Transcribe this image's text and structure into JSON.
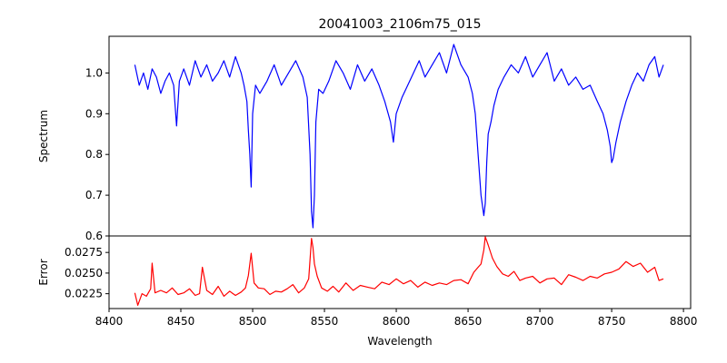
{
  "chart_data": [
    {
      "type": "line",
      "title": "20041003_2106m75_015",
      "xlabel": "",
      "ylabel": "Spectrum",
      "xlim": [
        8400,
        8805
      ],
      "ylim": [
        0.6,
        1.09
      ],
      "grid": false,
      "y_ticks": [
        0.6,
        0.7,
        0.8,
        0.9,
        1.0
      ],
      "y_tick_labels": [
        "0.6",
        "0.7",
        "0.8",
        "0.9",
        "1.0"
      ],
      "series": [
        {
          "color": "#0000ff",
          "x": [
            8418,
            8421,
            8424,
            8427,
            8430,
            8433,
            8436,
            8439,
            8442,
            8445,
            8447,
            8449,
            8452,
            8456,
            8460,
            8464,
            8468,
            8472,
            8476,
            8480,
            8484,
            8488,
            8492,
            8494,
            8496,
            8497,
            8498,
            8499,
            8500,
            8502,
            8505,
            8510,
            8515,
            8520,
            8525,
            8530,
            8535,
            8538,
            8540,
            8541,
            8542,
            8543,
            8544,
            8546,
            8549,
            8553,
            8558,
            8563,
            8568,
            8573,
            8578,
            8583,
            8588,
            8592,
            8596,
            8598,
            8600,
            8604,
            8608,
            8612,
            8616,
            8620,
            8625,
            8630,
            8635,
            8640,
            8645,
            8650,
            8653,
            8655,
            8657,
            8659,
            8661,
            8662,
            8663,
            8664,
            8666,
            8668,
            8671,
            8675,
            8680,
            8685,
            8690,
            8695,
            8700,
            8705,
            8710,
            8715,
            8720,
            8725,
            8730,
            8735,
            8740,
            8744,
            8747,
            8749,
            8750,
            8751,
            8753,
            8756,
            8760,
            8764,
            8768,
            8772,
            8776,
            8780,
            8783,
            8786
          ],
          "y": [
            1.02,
            0.97,
            1.0,
            0.96,
            1.01,
            0.99,
            0.95,
            0.98,
            1.0,
            0.97,
            0.87,
            0.98,
            1.01,
            0.97,
            1.03,
            0.99,
            1.02,
            0.98,
            1.0,
            1.03,
            0.99,
            1.04,
            1.0,
            0.97,
            0.93,
            0.86,
            0.8,
            0.72,
            0.9,
            0.97,
            0.95,
            0.98,
            1.02,
            0.97,
            1.0,
            1.03,
            0.99,
            0.94,
            0.8,
            0.66,
            0.62,
            0.7,
            0.88,
            0.96,
            0.95,
            0.98,
            1.03,
            1.0,
            0.96,
            1.02,
            0.98,
            1.01,
            0.97,
            0.93,
            0.88,
            0.83,
            0.9,
            0.94,
            0.97,
            1.0,
            1.03,
            0.99,
            1.02,
            1.05,
            1.0,
            1.07,
            1.02,
            0.99,
            0.95,
            0.9,
            0.8,
            0.7,
            0.65,
            0.68,
            0.78,
            0.85,
            0.88,
            0.92,
            0.96,
            0.99,
            1.02,
            1.0,
            1.04,
            0.99,
            1.02,
            1.05,
            0.98,
            1.01,
            0.97,
            0.99,
            0.96,
            0.97,
            0.93,
            0.9,
            0.86,
            0.82,
            0.78,
            0.79,
            0.83,
            0.88,
            0.93,
            0.97,
            1.0,
            0.98,
            1.02,
            1.04,
            0.99,
            1.02
          ]
        }
      ]
    },
    {
      "type": "line",
      "title": "",
      "xlabel": "Wavelength",
      "ylabel": "Error",
      "xlim": [
        8400,
        8805
      ],
      "ylim": [
        0.0207,
        0.0295
      ],
      "grid": false,
      "x_ticks": [
        8400,
        8450,
        8500,
        8550,
        8600,
        8650,
        8700,
        8750,
        8800
      ],
      "x_tick_labels": [
        "8400",
        "8450",
        "8500",
        "8550",
        "8600",
        "8650",
        "8700",
        "8750",
        "8800"
      ],
      "y_ticks": [
        0.0225,
        0.025,
        0.0275
      ],
      "y_tick_labels": [
        "0.0225",
        "0.0250",
        "0.0275"
      ],
      "series": [
        {
          "color": "#ff0000",
          "x": [
            8418,
            8420,
            8423,
            8426,
            8429,
            8430,
            8432,
            8436,
            8440,
            8444,
            8448,
            8452,
            8456,
            8460,
            8463,
            8465,
            8468,
            8472,
            8476,
            8480,
            8484,
            8488,
            8492,
            8495,
            8497,
            8499,
            8501,
            8504,
            8508,
            8512,
            8516,
            8520,
            8524,
            8528,
            8532,
            8536,
            8539,
            8541,
            8542,
            8543,
            8545,
            8548,
            8552,
            8556,
            8560,
            8565,
            8570,
            8575,
            8580,
            8585,
            8590,
            8595,
            8600,
            8605,
            8610,
            8615,
            8620,
            8625,
            8630,
            8635,
            8640,
            8645,
            8650,
            8654,
            8657,
            8659,
            8661,
            8662,
            8664,
            8667,
            8670,
            8674,
            8678,
            8682,
            8686,
            8690,
            8695,
            8700,
            8705,
            8710,
            8715,
            8720,
            8725,
            8730,
            8735,
            8740,
            8745,
            8750,
            8755,
            8760,
            8765,
            8770,
            8775,
            8780,
            8783,
            8786
          ],
          "y": [
            0.0226,
            0.0211,
            0.0225,
            0.0222,
            0.0231,
            0.0262,
            0.0226,
            0.0229,
            0.0226,
            0.0232,
            0.0224,
            0.0226,
            0.0231,
            0.0223,
            0.0225,
            0.0257,
            0.0229,
            0.0224,
            0.0234,
            0.0222,
            0.0228,
            0.0223,
            0.0227,
            0.0232,
            0.0247,
            0.0274,
            0.0238,
            0.0232,
            0.0231,
            0.0224,
            0.0228,
            0.0227,
            0.0231,
            0.0236,
            0.0226,
            0.0232,
            0.0243,
            0.0292,
            0.0281,
            0.0261,
            0.0246,
            0.0232,
            0.0228,
            0.0234,
            0.0227,
            0.0238,
            0.0229,
            0.0235,
            0.0233,
            0.0231,
            0.0239,
            0.0236,
            0.0243,
            0.0237,
            0.0241,
            0.0233,
            0.0239,
            0.0235,
            0.0238,
            0.0236,
            0.0241,
            0.0242,
            0.0237,
            0.0251,
            0.0257,
            0.0261,
            0.0278,
            0.0294,
            0.0284,
            0.0268,
            0.0258,
            0.0249,
            0.0246,
            0.0252,
            0.0241,
            0.0244,
            0.0246,
            0.0238,
            0.0243,
            0.0244,
            0.0236,
            0.0248,
            0.0245,
            0.0241,
            0.0246,
            0.0244,
            0.0249,
            0.0251,
            0.0255,
            0.0264,
            0.0258,
            0.0262,
            0.0251,
            0.0257,
            0.0241,
            0.0243
          ]
        }
      ]
    }
  ]
}
